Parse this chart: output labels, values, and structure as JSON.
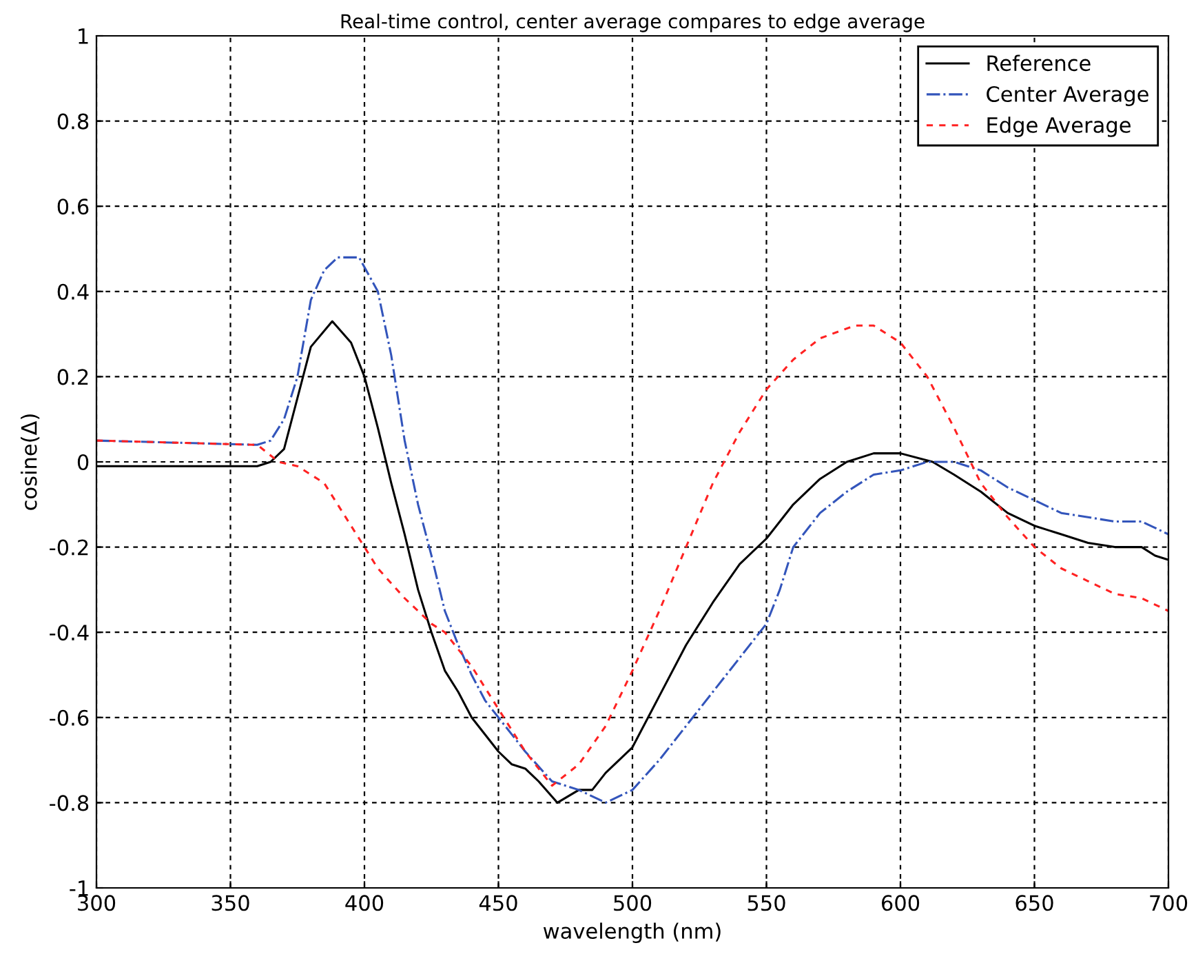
{
  "chart_data": {
    "type": "line",
    "title": "Real-time control, center average compares to edge average",
    "xlabel": "wavelength (nm)",
    "ylabel": "cosine(Δ)",
    "xlim": [
      300,
      700
    ],
    "xticks": [
      300,
      350,
      400,
      450,
      500,
      550,
      600,
      650,
      700
    ],
    "ylim": [
      -1,
      1
    ],
    "yticks": [
      -1,
      -0.8,
      -0.6,
      -0.4,
      -0.2,
      0,
      0.2,
      0.4,
      0.6,
      0.8,
      1
    ],
    "grid": true,
    "legend": "top right",
    "series": [
      {
        "name": "Reference",
        "color": "#000000",
        "line_style": "solid",
        "x": [
          300,
          320,
          340,
          360,
          365,
          370,
          375,
          380,
          388,
          395,
          400,
          405,
          410,
          415,
          420,
          425,
          430,
          435,
          440,
          445,
          450,
          455,
          460,
          465,
          472,
          480,
          485,
          490,
          500,
          510,
          520,
          530,
          540,
          550,
          555,
          560,
          570,
          580,
          590,
          600,
          612,
          620,
          630,
          640,
          650,
          660,
          670,
          680,
          690,
          695,
          700
        ],
        "values": [
          -0.01,
          -0.01,
          -0.01,
          -0.01,
          0,
          0.03,
          0.15,
          0.27,
          0.33,
          0.28,
          0.2,
          0.08,
          -0.05,
          -0.17,
          -0.3,
          -0.4,
          -0.49,
          -0.54,
          -0.6,
          -0.64,
          -0.68,
          -0.71,
          -0.72,
          -0.75,
          -0.8,
          -0.77,
          -0.77,
          -0.73,
          -0.67,
          -0.55,
          -0.43,
          -0.33,
          -0.24,
          -0.18,
          -0.14,
          -0.1,
          -0.04,
          0.0,
          0.02,
          0.02,
          0.0,
          -0.03,
          -0.07,
          -0.12,
          -0.15,
          -0.17,
          -0.19,
          -0.2,
          -0.2,
          -0.22,
          -0.23
        ]
      },
      {
        "name": "Center Average",
        "color": "#3355bb",
        "line_style": "dashdot",
        "x": [
          300,
          360,
          365,
          370,
          375,
          380,
          385,
          390,
          398,
          405,
          410,
          415,
          420,
          425,
          430,
          435,
          440,
          445,
          450,
          460,
          470,
          480,
          490,
          500,
          510,
          520,
          530,
          540,
          550,
          555,
          560,
          570,
          580,
          590,
          600,
          610,
          620,
          630,
          640,
          650,
          660,
          670,
          680,
          690,
          700
        ],
        "values": [
          0.05,
          0.04,
          0.05,
          0.1,
          0.2,
          0.38,
          0.45,
          0.48,
          0.48,
          0.4,
          0.25,
          0.05,
          -0.1,
          -0.22,
          -0.35,
          -0.43,
          -0.5,
          -0.56,
          -0.6,
          -0.68,
          -0.75,
          -0.77,
          -0.8,
          -0.77,
          -0.7,
          -0.62,
          -0.54,
          -0.46,
          -0.38,
          -0.3,
          -0.2,
          -0.12,
          -0.07,
          -0.03,
          -0.02,
          0,
          0,
          -0.02,
          -0.06,
          -0.09,
          -0.12,
          -0.13,
          -0.14,
          -0.14,
          -0.17
        ]
      },
      {
        "name": "Edge Average",
        "color": "#ff2222",
        "line_style": "dashed",
        "x": [
          300,
          360,
          368,
          375,
          385,
          395,
          405,
          415,
          425,
          430,
          440,
          450,
          460,
          470,
          480,
          490,
          500,
          510,
          520,
          530,
          540,
          550,
          560,
          570,
          583,
          590,
          600,
          610,
          620,
          630,
          640,
          650,
          660,
          670,
          680,
          690,
          700
        ],
        "values": [
          0.05,
          0.04,
          0.0,
          -0.01,
          -0.05,
          -0.15,
          -0.25,
          -0.32,
          -0.38,
          -0.4,
          -0.48,
          -0.58,
          -0.68,
          -0.76,
          -0.71,
          -0.62,
          -0.49,
          -0.35,
          -0.2,
          -0.05,
          0.07,
          0.17,
          0.24,
          0.29,
          0.32,
          0.32,
          0.28,
          0.2,
          0.08,
          -0.05,
          -0.13,
          -0.2,
          -0.25,
          -0.28,
          -0.31,
          -0.32,
          -0.35
        ]
      }
    ]
  }
}
